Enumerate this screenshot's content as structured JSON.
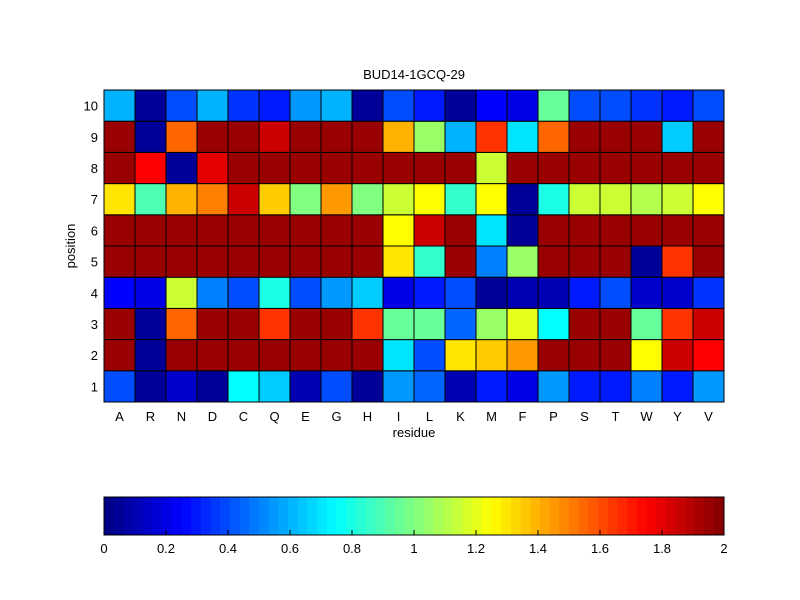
{
  "chart_data": {
    "type": "heatmap",
    "title": "BUD14-1GCQ-29",
    "xlabel": "residue",
    "ylabel": "position",
    "x_categories": [
      "A",
      "R",
      "N",
      "D",
      "C",
      "Q",
      "E",
      "G",
      "H",
      "I",
      "L",
      "K",
      "M",
      "F",
      "P",
      "S",
      "T",
      "W",
      "Y",
      "V"
    ],
    "y_categories": [
      "1",
      "2",
      "3",
      "4",
      "5",
      "6",
      "7",
      "8",
      "9",
      "10"
    ],
    "values": [
      [
        0.4,
        0.05,
        0.15,
        0.05,
        0.75,
        0.65,
        0.1,
        0.4,
        0.05,
        0.55,
        0.45,
        0.1,
        0.3,
        0.2,
        0.55,
        0.3,
        0.3,
        0.5,
        0.3,
        0.55
      ],
      [
        1.95,
        0.05,
        1.95,
        1.95,
        1.95,
        1.95,
        1.95,
        1.95,
        1.95,
        0.7,
        0.4,
        1.3,
        1.35,
        1.45,
        1.95,
        1.95,
        1.95,
        1.25,
        1.85,
        1.75
      ],
      [
        1.95,
        0.05,
        1.55,
        1.95,
        1.95,
        1.65,
        1.95,
        1.95,
        1.65,
        0.95,
        0.95,
        0.45,
        1.05,
        1.2,
        0.75,
        1.95,
        1.95,
        0.95,
        1.65,
        1.85
      ],
      [
        0.25,
        0.2,
        1.15,
        0.5,
        0.4,
        0.8,
        0.4,
        0.55,
        0.65,
        0.2,
        0.3,
        0.4,
        0.05,
        0.1,
        0.1,
        0.3,
        0.4,
        0.15,
        0.15,
        0.35
      ],
      [
        1.95,
        1.95,
        1.95,
        1.95,
        1.95,
        1.95,
        1.95,
        1.95,
        1.95,
        1.3,
        0.85,
        1.95,
        0.5,
        1.05,
        1.95,
        1.95,
        1.95,
        0.05,
        1.65,
        1.95
      ],
      [
        1.95,
        1.95,
        1.95,
        1.95,
        1.95,
        1.95,
        1.95,
        1.95,
        1.95,
        1.25,
        1.85,
        1.95,
        0.7,
        0.05,
        1.95,
        1.95,
        1.95,
        1.95,
        1.95,
        1.95
      ],
      [
        1.3,
        0.9,
        1.4,
        1.5,
        1.85,
        1.35,
        1.0,
        1.45,
        1.0,
        1.15,
        1.25,
        0.85,
        1.25,
        0.05,
        0.8,
        1.15,
        1.15,
        1.1,
        1.15,
        1.25
      ],
      [
        1.95,
        1.75,
        0.05,
        1.8,
        1.95,
        1.95,
        1.95,
        1.95,
        1.95,
        1.95,
        1.95,
        1.95,
        1.15,
        1.95,
        1.95,
        1.95,
        1.95,
        1.95,
        1.95,
        1.95
      ],
      [
        1.95,
        0.05,
        1.55,
        1.95,
        1.95,
        1.85,
        1.95,
        1.95,
        1.95,
        1.4,
        1.05,
        0.6,
        1.65,
        0.7,
        1.55,
        1.95,
        1.95,
        1.95,
        0.65,
        1.95
      ],
      [
        0.6,
        0.05,
        0.4,
        0.6,
        0.35,
        0.3,
        0.55,
        0.6,
        0.05,
        0.4,
        0.3,
        0.05,
        0.25,
        0.2,
        0.95,
        0.4,
        0.4,
        0.35,
        0.3,
        0.4
      ]
    ],
    "colormap": "jet",
    "clim": [
      0,
      2
    ],
    "colorbar": {
      "orientation": "horizontal",
      "placement": "bottom",
      "ticks": [
        "0",
        "0.2",
        "0.4",
        "0.6",
        "0.8",
        "1",
        "1.2",
        "1.4",
        "1.6",
        "1.8",
        "2"
      ]
    }
  }
}
